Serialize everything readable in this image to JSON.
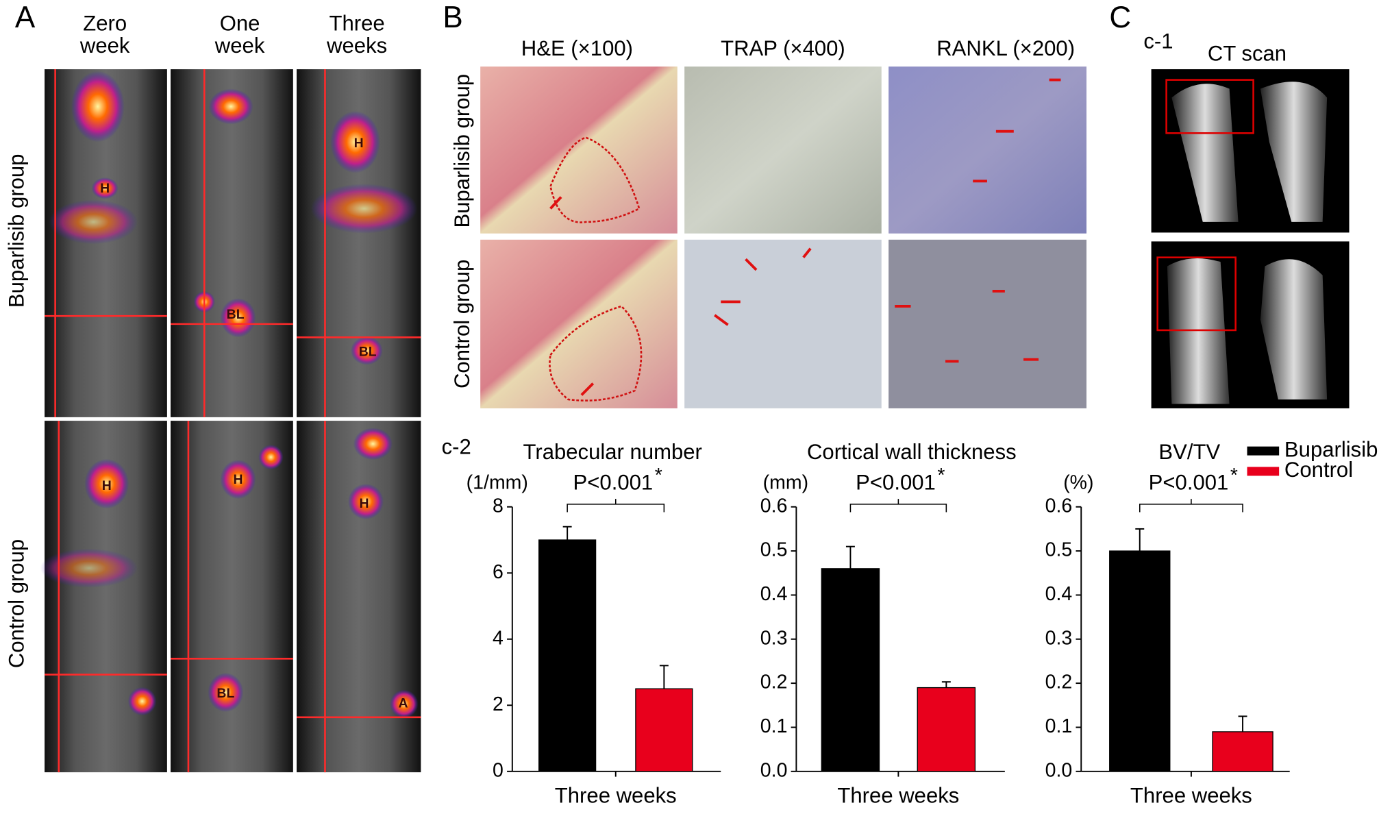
{
  "panel_a": {
    "label": "A",
    "columns": [
      [
        "Zero",
        "week"
      ],
      [
        "One",
        "week"
      ],
      [
        "Three",
        "weeks"
      ]
    ],
    "rows": [
      "Buparlisib group",
      "Control group"
    ],
    "markers": [
      "H",
      "BL",
      "H",
      "BL",
      "H",
      "H",
      "BL",
      "H",
      "A"
    ]
  },
  "panel_b": {
    "label": "B",
    "columns": [
      "H&E (×100)",
      "TRAP (×400)",
      "RANKL (×200)"
    ],
    "rows": [
      "Buparlisib group",
      "Control group"
    ]
  },
  "panel_c": {
    "label": "C",
    "sublabel": "c-1",
    "title": "CT scan",
    "sublabel_2": "c-2"
  },
  "chart_data": [
    {
      "type": "bar",
      "title": "Trabecular number",
      "y_unit": "(1/mm)",
      "annotation": "P<0.001",
      "annotation_mark": "*",
      "categories": [
        "Three weeks"
      ],
      "series": [
        {
          "color": "#000000",
          "values": [
            7.0
          ],
          "errors": [
            0.4
          ]
        },
        {
          "color": "#e8001c",
          "values": [
            2.5
          ],
          "errors": [
            0.7
          ]
        }
      ],
      "ylim": [
        0,
        8
      ],
      "yticks": [
        0,
        2,
        4,
        6,
        8
      ],
      "legend": false
    },
    {
      "type": "bar",
      "title": "Cortical wall thickness",
      "y_unit": "(mm)",
      "annotation": "P<0.001",
      "annotation_mark": "*",
      "categories": [
        "Three weeks"
      ],
      "series": [
        {
          "color": "#000000",
          "values": [
            0.46
          ],
          "errors": [
            0.05
          ]
        },
        {
          "color": "#e8001c",
          "values": [
            0.19
          ],
          "errors": [
            0.013
          ]
        }
      ],
      "ylim": [
        0,
        0.6
      ],
      "yticks": [
        {
          "value": 0,
          "label": "0.0"
        },
        0.1,
        0.2,
        0.3,
        0.4,
        0.5,
        0.6
      ],
      "legend": false
    },
    {
      "type": "bar",
      "title": "BV/TV",
      "y_unit": "(%)",
      "annotation": "P<0.001",
      "annotation_mark": "*",
      "categories": [
        "Three weeks"
      ],
      "series": [
        {
          "name": "Buparlisib",
          "color": "#000000",
          "values": [
            0.5
          ],
          "errors": [
            0.05
          ]
        },
        {
          "name": "Control",
          "color": "#e8001c",
          "values": [
            0.09
          ],
          "errors": [
            0.035
          ]
        }
      ],
      "ylim": [
        0,
        0.6
      ],
      "yticks": [
        {
          "value": 0,
          "label": "0.0"
        },
        0.1,
        0.2,
        0.3,
        0.4,
        0.5,
        0.6
      ],
      "legend": true
    }
  ]
}
